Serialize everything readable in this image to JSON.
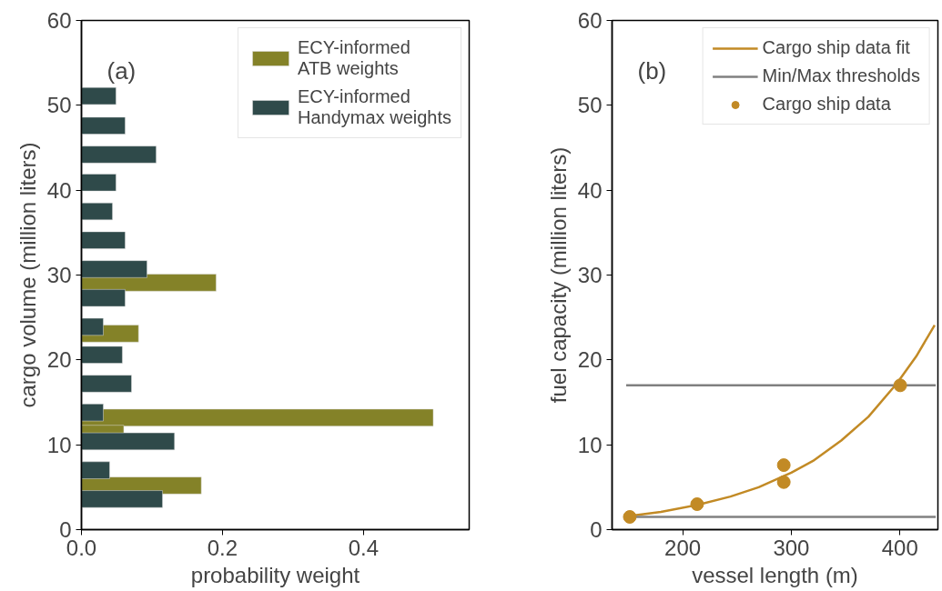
{
  "chart_data": [
    {
      "type": "bar",
      "orientation": "horizontal",
      "xlabel": "probability weight",
      "ylabel": "cargo volume (million liters)",
      "annotations": [
        "(a)"
      ],
      "series": [
        {
          "name": "ECY-informed ATB weights",
          "color": "#848228",
          "x": [
            29.1,
            23.1,
            13.2,
            11.3,
            5.2
          ],
          "values": [
            0.191,
            0.081,
            0.499,
            0.06,
            0.17
          ]
        },
        {
          "name": "ECY-informed Handymax weights",
          "color": "#2f4a4a",
          "x": [
            51.1,
            47.6,
            44.2,
            40.9,
            37.5,
            34.1,
            30.7,
            27.3,
            23.9,
            20.6,
            17.2,
            13.8,
            10.4,
            7.0,
            3.6
          ],
          "values": [
            0.049,
            0.062,
            0.106,
            0.049,
            0.044,
            0.062,
            0.093,
            0.062,
            0.031,
            0.058,
            0.071,
            0.031,
            0.132,
            0.04,
            0.115
          ]
        }
      ],
      "xlim": [
        0,
        0.55
      ],
      "xticks": [
        {
          "value": 0,
          "label": "0.0"
        },
        {
          "value": 0.2,
          "label": "0.2"
        },
        {
          "value": 0.4,
          "label": "0.4"
        }
      ],
      "ylim": [
        0,
        60
      ],
      "yticks": [
        0,
        10,
        20,
        30,
        40,
        50,
        60
      ],
      "grid": false,
      "legend": "top right"
    },
    {
      "type": "scatter",
      "xlabel": "vessel length (m)",
      "ylabel": "fuel capacity (million liters)",
      "annotations": [
        "(b)"
      ],
      "series": [
        {
          "name": "Cargo ship data fit",
          "type": "line",
          "color": "#c28a25",
          "x": [
            151,
            180,
            213,
            244,
            270,
            300,
            320,
            346,
            371,
            397,
            415,
            432
          ],
          "values": [
            1.6,
            2.1,
            2.9,
            3.9,
            5.0,
            6.7,
            8.1,
            10.5,
            13.3,
            17.2,
            20.4,
            24.1
          ]
        },
        {
          "name": "Min/Max thresholds",
          "type": "line",
          "color": "#808080",
          "x": [
            148,
            433
          ],
          "values": [
            17.0,
            17.0
          ]
        },
        {
          "type": "line",
          "color": "#808080",
          "x": [
            148,
            433
          ],
          "values": [
            1.5,
            1.5
          ]
        },
        {
          "name": "Cargo ship data",
          "type": "scatter",
          "color": "#c28a25",
          "marker": "circle",
          "x": [
            151.3,
            213.3,
            293.1,
            293.1,
            400.3
          ],
          "values": [
            1.5,
            3.0,
            7.6,
            5.6,
            17.0
          ]
        }
      ],
      "xlim": [
        135,
        435
      ],
      "xticks": [
        200,
        300,
        400
      ],
      "ylim": [
        0,
        60
      ],
      "yticks": [
        0,
        10,
        20,
        30,
        40,
        50,
        60
      ],
      "grid": false,
      "legend": "top right"
    }
  ]
}
